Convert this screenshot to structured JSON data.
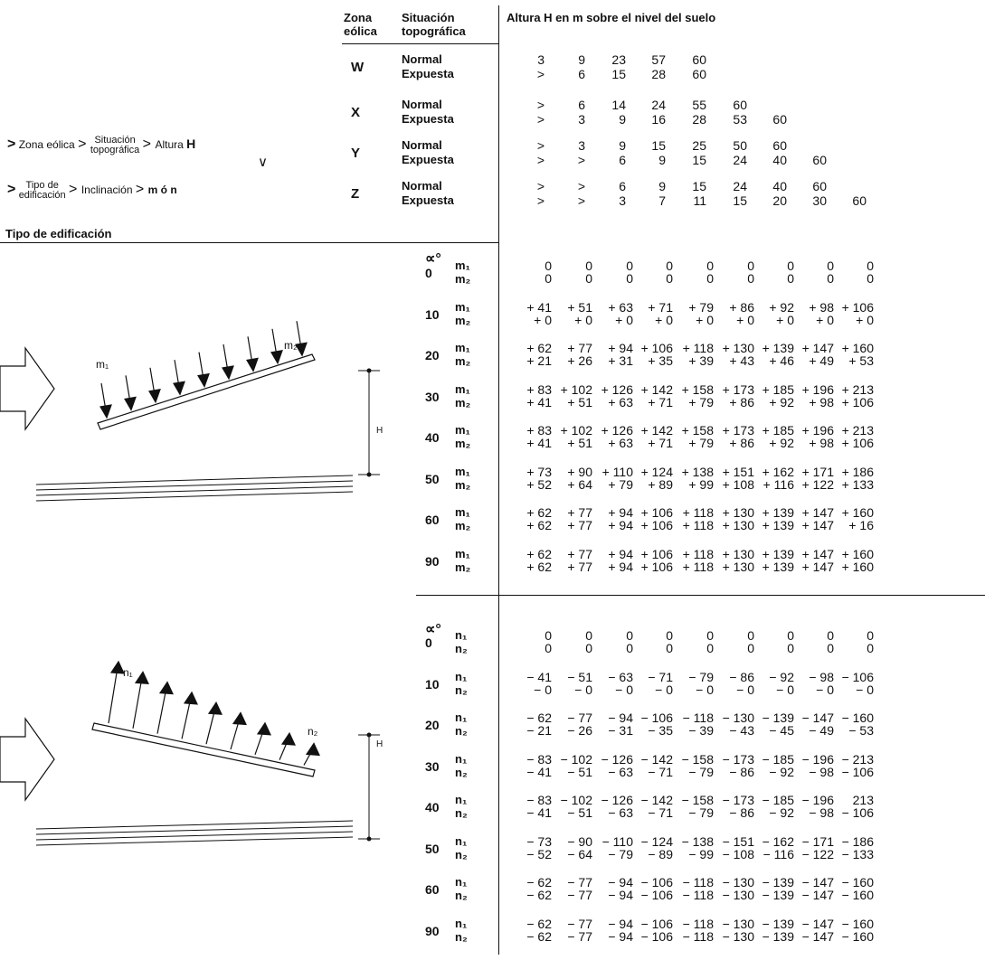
{
  "header": {
    "zona": [
      "Zona",
      "eólica"
    ],
    "situacion": [
      "Situación",
      "topográfica"
    ],
    "altura": "Altura H en m sobre el nivel del suelo"
  },
  "flow": {
    "zona_eolica": "Zona eólica",
    "situacion": [
      "Situación",
      "topográfica"
    ],
    "altura": "Altura",
    "altura_symbol": "H",
    "tipo": [
      "Tipo de",
      "edificación"
    ],
    "inclinacion": "Inclinación",
    "mn": "m ó n"
  },
  "tipo_label": "Tipo de edificación",
  "diagram_labels": {
    "m1": "m₁",
    "m2": "m₂",
    "n1": "n₁",
    "n2": "n₂",
    "H": "H"
  },
  "alpha_label": "∝°",
  "zones": [
    {
      "zone": "W",
      "normal": "Normal",
      "expuesta": "Expuesta",
      "normal_vals": [
        "3",
        "9",
        "23",
        "57",
        "60",
        "",
        "",
        "",
        ""
      ],
      "expuesta_vals": [
        ">",
        "6",
        "15",
        "28",
        "60",
        "",
        "",
        "",
        ""
      ]
    },
    {
      "zone": "X",
      "normal": "Normal",
      "expuesta": "Expuesta",
      "normal_vals": [
        ">",
        "6",
        "14",
        "24",
        "55",
        "60",
        "",
        "",
        ""
      ],
      "expuesta_vals": [
        ">",
        "3",
        "9",
        "16",
        "28",
        "53",
        "60",
        "",
        ""
      ]
    },
    {
      "zone": "Y",
      "normal": "Normal",
      "expuesta": "Expuesta",
      "normal_vals": [
        ">",
        "3",
        "9",
        "15",
        "25",
        "50",
        "60",
        "",
        ""
      ],
      "expuesta_vals": [
        ">",
        ">",
        "6",
        "9",
        "15",
        "24",
        "40",
        "60",
        ""
      ]
    },
    {
      "zone": "Z",
      "normal": "Normal",
      "expuesta": "Expuesta",
      "normal_vals": [
        ">",
        ">",
        "6",
        "9",
        "15",
        "24",
        "40",
        "60",
        ""
      ],
      "expuesta_vals": [
        ">",
        ">",
        "3",
        "7",
        "11",
        "15",
        "20",
        "30",
        "60"
      ]
    }
  ],
  "m_table": [
    {
      "angle": "0",
      "r1": [
        "0",
        "0",
        "0",
        "0",
        "0",
        "0",
        "0",
        "0",
        "0"
      ],
      "r2": [
        "0",
        "0",
        "0",
        "0",
        "0",
        "0",
        "0",
        "0",
        "0"
      ]
    },
    {
      "angle": "10",
      "r1": [
        "+ 41",
        "+ 51",
        "+ 63",
        "+ 71",
        "+ 79",
        "+ 86",
        "+ 92",
        "+ 98",
        "+ 106"
      ],
      "r2": [
        "+ 0",
        "+ 0",
        "+ 0",
        "+ 0",
        "+ 0",
        "+ 0",
        "+ 0",
        "+ 0",
        "+ 0"
      ]
    },
    {
      "angle": "20",
      "r1": [
        "+ 62",
        "+ 77",
        "+ 94",
        "+ 106",
        "+ 118",
        "+ 130",
        "+ 139",
        "+ 147",
        "+ 160"
      ],
      "r2": [
        "+ 21",
        "+ 26",
        "+ 31",
        "+ 35",
        "+ 39",
        "+ 43",
        "+ 46",
        "+ 49",
        "+ 53"
      ]
    },
    {
      "angle": "30",
      "r1": [
        "+ 83",
        "+ 102",
        "+ 126",
        "+ 142",
        "+ 158",
        "+ 173",
        "+ 185",
        "+ 196",
        "+ 213"
      ],
      "r2": [
        "+ 41",
        "+ 51",
        "+ 63",
        "+ 71",
        "+ 79",
        "+ 86",
        "+ 92",
        "+ 98",
        "+ 106"
      ]
    },
    {
      "angle": "40",
      "r1": [
        "+ 83",
        "+ 102",
        "+ 126",
        "+ 142",
        "+ 158",
        "+ 173",
        "+ 185",
        "+ 196",
        "+ 213"
      ],
      "r2": [
        "+ 41",
        "+ 51",
        "+ 63",
        "+ 71",
        "+ 79",
        "+ 86",
        "+ 92",
        "+ 98",
        "+ 106"
      ]
    },
    {
      "angle": "50",
      "r1": [
        "+ 73",
        "+ 90",
        "+ 110",
        "+ 124",
        "+ 138",
        "+ 151",
        "+ 162",
        "+ 171",
        "+ 186"
      ],
      "r2": [
        "+ 52",
        "+ 64",
        "+ 79",
        "+ 89",
        "+ 99",
        "+ 108",
        "+ 116",
        "+ 122",
        "+ 133"
      ]
    },
    {
      "angle": "60",
      "r1": [
        "+ 62",
        "+ 77",
        "+ 94",
        "+ 106",
        "+ 118",
        "+ 130",
        "+ 139",
        "+ 147",
        "+ 160"
      ],
      "r2": [
        "+ 62",
        "+ 77",
        "+ 94",
        "+ 106",
        "+ 118",
        "+ 130",
        "+ 139",
        "+ 147",
        "+ 16"
      ]
    },
    {
      "angle": "90",
      "r1": [
        "+ 62",
        "+ 77",
        "+ 94",
        "+ 106",
        "+ 118",
        "+ 130",
        "+ 139",
        "+ 147",
        "+ 160"
      ],
      "r2": [
        "+ 62",
        "+ 77",
        "+ 94",
        "+ 106",
        "+ 118",
        "+ 130",
        "+ 139",
        "+ 147",
        "+ 160"
      ]
    }
  ],
  "n_table": [
    {
      "angle": "0",
      "r1": [
        "0",
        "0",
        "0",
        "0",
        "0",
        "0",
        "0",
        "0",
        "0"
      ],
      "r2": [
        "0",
        "0",
        "0",
        "0",
        "0",
        "0",
        "0",
        "0",
        "0"
      ]
    },
    {
      "angle": "10",
      "r1": [
        "− 41",
        "− 51",
        "− 63",
        "− 71",
        "− 79",
        "− 86",
        "− 92",
        "− 98",
        "− 106"
      ],
      "r2": [
        "− 0",
        "− 0",
        "− 0",
        "− 0",
        "− 0",
        "− 0",
        "− 0",
        "− 0",
        "− 0"
      ]
    },
    {
      "angle": "20",
      "r1": [
        "− 62",
        "− 77",
        "− 94",
        "− 106",
        "− 118",
        "− 130",
        "− 139",
        "− 147",
        "− 160"
      ],
      "r2": [
        "− 21",
        "− 26",
        "− 31",
        "− 35",
        "− 39",
        "− 43",
        "− 45",
        "− 49",
        "− 53"
      ]
    },
    {
      "angle": "30",
      "r1": [
        "− 83",
        "− 102",
        "− 126",
        "− 142",
        "− 158",
        "− 173",
        "− 185",
        "− 196",
        "− 213"
      ],
      "r2": [
        "− 41",
        "− 51",
        "− 63",
        "− 71",
        "− 79",
        "− 86",
        "− 92",
        "− 98",
        "− 106"
      ]
    },
    {
      "angle": "40",
      "r1": [
        "− 83",
        "− 102",
        "− 126",
        "− 142",
        "− 158",
        "− 173",
        "− 185",
        "− 196",
        "213"
      ],
      "r2": [
        "− 41",
        "− 51",
        "− 63",
        "− 71",
        "− 79",
        "− 86",
        "− 92",
        "− 98",
        "− 106"
      ]
    },
    {
      "angle": "50",
      "r1": [
        "− 73",
        "− 90",
        "− 110",
        "− 124",
        "− 138",
        "− 151",
        "− 162",
        "− 171",
        "− 186"
      ],
      "r2": [
        "− 52",
        "− 64",
        "− 79",
        "− 89",
        "− 99",
        "− 108",
        "− 116",
        "− 122",
        "− 133"
      ]
    },
    {
      "angle": "60",
      "r1": [
        "− 62",
        "− 77",
        "− 94",
        "− 106",
        "− 118",
        "− 130",
        "− 139",
        "− 147",
        "− 160"
      ],
      "r2": [
        "− 62",
        "− 77",
        "− 94",
        "− 106",
        "− 118",
        "− 130",
        "− 139",
        "− 147",
        "− 160"
      ]
    },
    {
      "angle": "90",
      "r1": [
        "− 62",
        "− 77",
        "− 94",
        "− 106",
        "− 118",
        "− 130",
        "− 139",
        "− 147",
        "− 160"
      ],
      "r2": [
        "− 62",
        "− 77",
        "− 94",
        "− 106",
        "− 118",
        "− 130",
        "− 139",
        "− 147",
        "− 160"
      ]
    }
  ],
  "m_row_labels": [
    "m₁",
    "m₂"
  ],
  "n_row_labels": [
    "n₁",
    "n₂"
  ]
}
